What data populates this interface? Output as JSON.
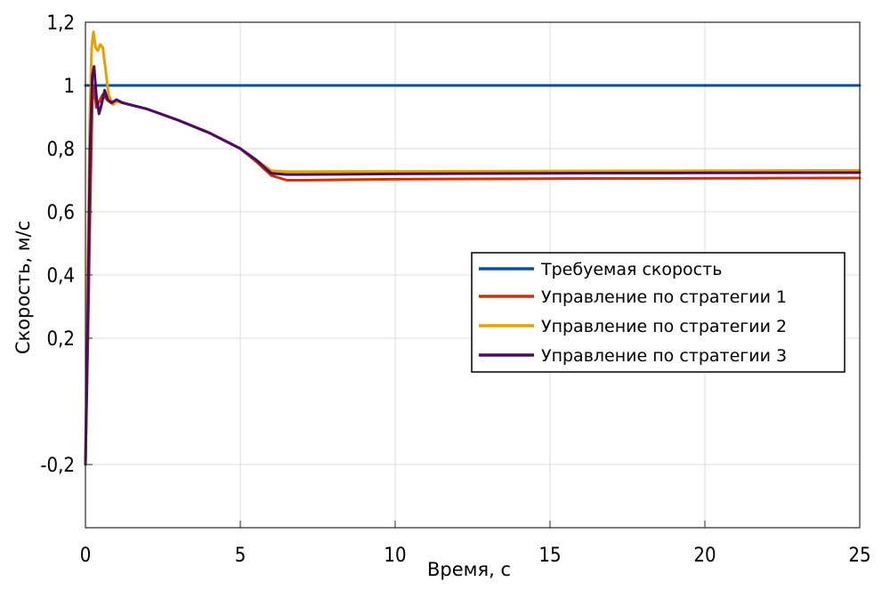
{
  "chart_data": {
    "type": "line",
    "title": "",
    "xlabel": "Время, с",
    "ylabel": "Скорость, м/с",
    "xlim": [
      0,
      25
    ],
    "ylim": [
      -0.4,
      1.2
    ],
    "grid": true,
    "legend_position": "center-right",
    "x_ticks": [
      {
        "value": 0,
        "label": "0"
      },
      {
        "value": 5,
        "label": "5"
      },
      {
        "value": 10,
        "label": "10"
      },
      {
        "value": 15,
        "label": "15"
      },
      {
        "value": 20,
        "label": "20"
      },
      {
        "value": 25,
        "label": "25"
      }
    ],
    "y_ticks": [
      {
        "value": -0.2,
        "label": "-0,2"
      },
      {
        "value": 0.2,
        "label": "0,2"
      },
      {
        "value": 0.4,
        "label": "0,4"
      },
      {
        "value": 0.6,
        "label": "0,6"
      },
      {
        "value": 0.8,
        "label": "0,8"
      },
      {
        "value": 1.0,
        "label": "1"
      },
      {
        "value": 1.2,
        "label": "1,2"
      }
    ],
    "series": [
      {
        "name": "Требуемая скорость",
        "color": "#0b4f9c",
        "points": [
          [
            0,
            1.0
          ],
          [
            25,
            1.0
          ]
        ]
      },
      {
        "name": "Управление по стратегии 1",
        "color": "#cc3300",
        "points": [
          [
            0,
            -0.2
          ],
          [
            0.08,
            0.2
          ],
          [
            0.15,
            0.6
          ],
          [
            0.22,
            0.95
          ],
          [
            0.27,
            1.0
          ],
          [
            0.35,
            0.93
          ],
          [
            0.45,
            0.95
          ],
          [
            0.55,
            0.97
          ],
          [
            0.65,
            0.96
          ],
          [
            0.75,
            0.95
          ],
          [
            0.9,
            0.94
          ],
          [
            1.0,
            0.95
          ],
          [
            1.2,
            0.945
          ],
          [
            1.4,
            0.94
          ],
          [
            2.0,
            0.925
          ],
          [
            3.0,
            0.89
          ],
          [
            4.0,
            0.85
          ],
          [
            4.5,
            0.825
          ],
          [
            5.0,
            0.8
          ],
          [
            5.5,
            0.76
          ],
          [
            6.0,
            0.715
          ],
          [
            6.5,
            0.7
          ],
          [
            7.0,
            0.7
          ],
          [
            8.0,
            0.701
          ],
          [
            10.0,
            0.703
          ],
          [
            15.0,
            0.705
          ],
          [
            20.0,
            0.706
          ],
          [
            25.0,
            0.707
          ]
        ]
      },
      {
        "name": "Управление по стратегии 2",
        "color": "#e8a000",
        "points": [
          [
            0,
            -0.2
          ],
          [
            0.07,
            0.4
          ],
          [
            0.14,
            0.9
          ],
          [
            0.2,
            1.12
          ],
          [
            0.26,
            1.17
          ],
          [
            0.33,
            1.12
          ],
          [
            0.4,
            1.11
          ],
          [
            0.48,
            1.13
          ],
          [
            0.56,
            1.12
          ],
          [
            0.65,
            1.05
          ],
          [
            0.75,
            0.97
          ],
          [
            0.9,
            0.94
          ],
          [
            1.0,
            0.95
          ],
          [
            1.2,
            0.945
          ],
          [
            1.4,
            0.94
          ],
          [
            2.0,
            0.925
          ],
          [
            3.0,
            0.89
          ],
          [
            4.0,
            0.85
          ],
          [
            4.5,
            0.825
          ],
          [
            5.0,
            0.8
          ],
          [
            5.5,
            0.765
          ],
          [
            6.0,
            0.73
          ],
          [
            6.5,
            0.727
          ],
          [
            7.0,
            0.727
          ],
          [
            10.0,
            0.728
          ],
          [
            15.0,
            0.729
          ],
          [
            20.0,
            0.73
          ],
          [
            25.0,
            0.731
          ]
        ]
      },
      {
        "name": "Управление по стратегии 3",
        "color": "#4a0a66",
        "points": [
          [
            0,
            -0.2
          ],
          [
            0.08,
            0.3
          ],
          [
            0.15,
            0.8
          ],
          [
            0.22,
            1.03
          ],
          [
            0.28,
            1.06
          ],
          [
            0.36,
            0.96
          ],
          [
            0.44,
            0.91
          ],
          [
            0.52,
            0.94
          ],
          [
            0.62,
            0.985
          ],
          [
            0.72,
            0.955
          ],
          [
            0.85,
            0.945
          ],
          [
            1.0,
            0.955
          ],
          [
            1.2,
            0.945
          ],
          [
            1.4,
            0.94
          ],
          [
            2.0,
            0.925
          ],
          [
            3.0,
            0.89
          ],
          [
            4.0,
            0.85
          ],
          [
            4.5,
            0.825
          ],
          [
            5.0,
            0.8
          ],
          [
            5.5,
            0.765
          ],
          [
            6.0,
            0.722
          ],
          [
            6.5,
            0.718
          ],
          [
            7.0,
            0.718
          ],
          [
            10.0,
            0.72
          ],
          [
            15.0,
            0.722
          ],
          [
            20.0,
            0.723
          ],
          [
            25.0,
            0.724
          ]
        ]
      }
    ]
  }
}
